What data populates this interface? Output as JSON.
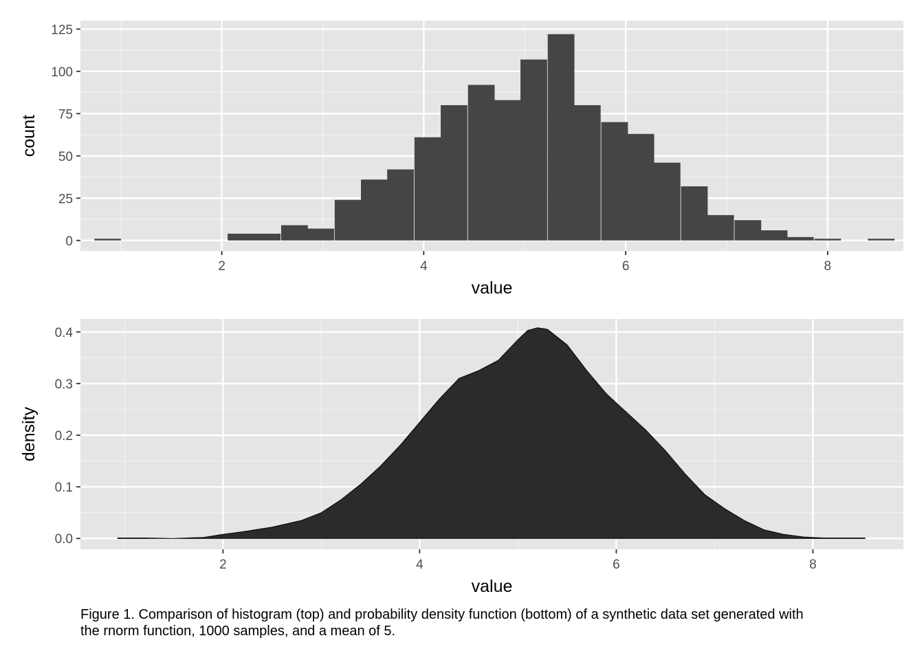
{
  "chart_data": [
    {
      "type": "bar",
      "xlabel": "value",
      "ylabel": "count",
      "xlim": [
        0.6,
        8.75
      ],
      "ylim": [
        -6.2,
        130
      ],
      "x_ticks": [
        2,
        4,
        6,
        8
      ],
      "y_ticks": [
        0,
        25,
        50,
        75,
        100,
        125
      ],
      "grid": true,
      "bin_width": 0.264,
      "bins": [
        {
          "x": 0.87,
          "count": 1
        },
        {
          "x": 2.19,
          "count": 4
        },
        {
          "x": 2.45,
          "count": 4
        },
        {
          "x": 2.72,
          "count": 9
        },
        {
          "x": 2.98,
          "count": 7
        },
        {
          "x": 3.25,
          "count": 24
        },
        {
          "x": 3.51,
          "count": 36
        },
        {
          "x": 3.77,
          "count": 42
        },
        {
          "x": 4.04,
          "count": 61
        },
        {
          "x": 4.3,
          "count": 80
        },
        {
          "x": 4.57,
          "count": 92
        },
        {
          "x": 4.83,
          "count": 83
        },
        {
          "x": 5.09,
          "count": 107
        },
        {
          "x": 5.36,
          "count": 122
        },
        {
          "x": 5.62,
          "count": 80
        },
        {
          "x": 5.89,
          "count": 70
        },
        {
          "x": 6.15,
          "count": 63
        },
        {
          "x": 6.41,
          "count": 46
        },
        {
          "x": 6.68,
          "count": 32
        },
        {
          "x": 6.94,
          "count": 15
        },
        {
          "x": 7.21,
          "count": 12
        },
        {
          "x": 7.47,
          "count": 6
        },
        {
          "x": 7.73,
          "count": 2
        },
        {
          "x": 8.0,
          "count": 1
        },
        {
          "x": 8.53,
          "count": 1
        }
      ]
    },
    {
      "type": "area",
      "xlabel": "value",
      "ylabel": "density",
      "xlim": [
        0.55,
        8.92
      ],
      "ylim": [
        -0.021,
        0.425
      ],
      "x_ticks": [
        2,
        4,
        6,
        8
      ],
      "y_ticks": [
        0.0,
        0.1,
        0.2,
        0.3,
        0.4
      ],
      "y_tick_labels": [
        "0.0",
        "0.1",
        "0.2",
        "0.3",
        "0.4"
      ],
      "grid": true,
      "x": [
        0.93,
        1.2,
        1.5,
        1.8,
        2.0,
        2.2,
        2.5,
        2.8,
        3.0,
        3.2,
        3.4,
        3.6,
        3.8,
        4.0,
        4.2,
        4.4,
        4.6,
        4.8,
        5.0,
        5.1,
        5.2,
        5.3,
        5.5,
        5.7,
        5.9,
        6.1,
        6.3,
        6.5,
        6.7,
        6.9,
        7.1,
        7.3,
        7.5,
        7.7,
        7.9,
        8.1,
        8.3,
        8.53
      ],
      "y": [
        0.001,
        0.001,
        0.0,
        0.002,
        0.008,
        0.013,
        0.022,
        0.035,
        0.05,
        0.075,
        0.105,
        0.14,
        0.18,
        0.225,
        0.27,
        0.31,
        0.325,
        0.345,
        0.385,
        0.403,
        0.408,
        0.405,
        0.375,
        0.325,
        0.28,
        0.245,
        0.21,
        0.17,
        0.125,
        0.085,
        0.058,
        0.035,
        0.017,
        0.008,
        0.003,
        0.001,
        0.001,
        0.001
      ]
    }
  ],
  "caption": {
    "line1": "Figure 1. Comparison of histogram (top) and probability density function (bottom) of a synthetic data set generated with",
    "line2": " the rnorm function, 1000 samples, and a mean of 5."
  }
}
